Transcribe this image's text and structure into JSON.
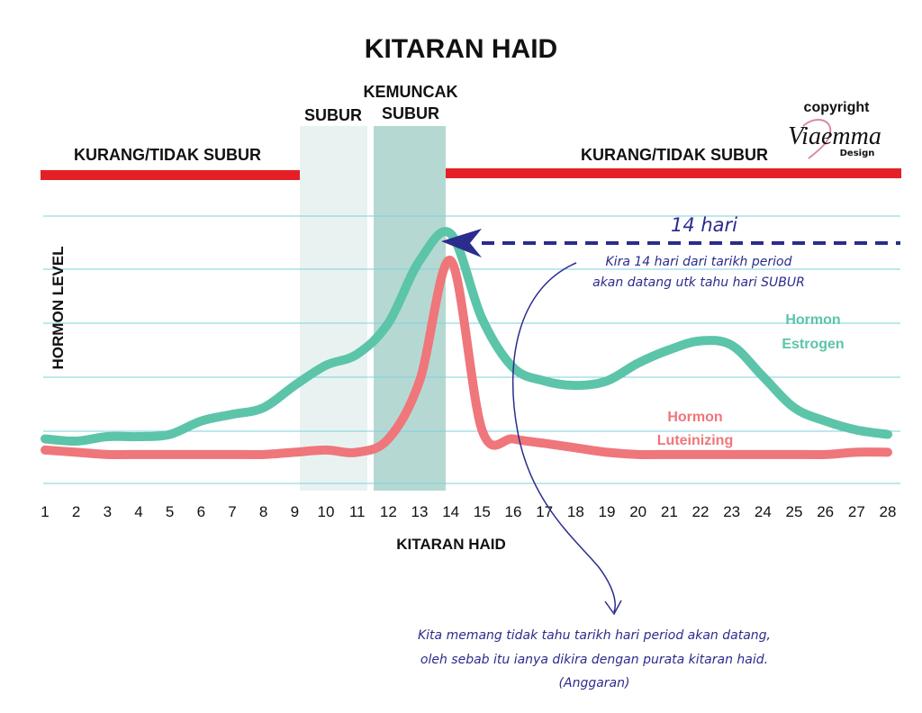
{
  "chart_data": {
    "type": "line",
    "title": "KITARAN HAID",
    "xlabel": "KITARAN HAID",
    "ylabel": "HORMON LEVEL",
    "x": [
      1,
      2,
      3,
      4,
      5,
      6,
      7,
      8,
      9,
      10,
      11,
      12,
      13,
      14,
      15,
      16,
      17,
      18,
      19,
      20,
      21,
      22,
      23,
      24,
      25,
      26,
      27,
      28
    ],
    "xlim": [
      1,
      28
    ],
    "ylim": [
      0,
      6
    ],
    "grid": true,
    "series": [
      {
        "name": "Hormon Estrogen",
        "color": "#5cc4a9",
        "values": [
          1.0,
          0.95,
          1.05,
          1.05,
          1.1,
          1.4,
          1.55,
          1.7,
          2.2,
          2.65,
          2.9,
          3.6,
          5.0,
          5.6,
          3.7,
          2.6,
          2.3,
          2.2,
          2.3,
          2.7,
          3.0,
          3.2,
          3.1,
          2.4,
          1.7,
          1.4,
          1.2,
          1.1
        ]
      },
      {
        "name": "Hormon Luteinizing",
        "color": "#ef767a",
        "values": [
          0.75,
          0.7,
          0.65,
          0.65,
          0.65,
          0.65,
          0.65,
          0.65,
          0.7,
          0.75,
          0.7,
          1.0,
          2.3,
          5.0,
          1.2,
          1.0,
          0.9,
          0.8,
          0.7,
          0.65,
          0.65,
          0.65,
          0.65,
          0.65,
          0.65,
          0.65,
          0.7,
          0.7
        ]
      }
    ],
    "zones": [
      {
        "label": "KURANG/TIDAK SUBUR",
        "from": 1,
        "to": 10.5,
        "color": "#e42026"
      },
      {
        "label": "SUBUR",
        "from": 10.5,
        "to": 12.5,
        "color": "#e8f3f1"
      },
      {
        "label": "KEMUNCAK SUBUR",
        "from": 12.5,
        "to": 14.6,
        "color": "#b5d9d2"
      },
      {
        "label": "KURANG/TIDAK SUBUR",
        "from": 14.6,
        "to": 28.5,
        "color": "#e42026"
      }
    ],
    "annotations": {
      "days_label": "14 hari",
      "arrow_note_line1": "Kira 14 hari dari tarikh period",
      "arrow_note_line2": "akan datang utk tahu hari SUBUR",
      "bottom_note_line1": "Kita memang tidak tahu tarikh hari period akan datang,",
      "bottom_note_line2": "oleh sebab itu ianya dikira dengan purata kitaran haid.",
      "bottom_note_line3": "(Anggaran)"
    },
    "series_labels": {
      "estrogen_line1": "Hormon",
      "estrogen_line2": "Estrogen",
      "lh_line1": "Hormon",
      "lh_line2": "Luteinizing"
    }
  },
  "brand": {
    "copyright": "copyright",
    "name": "Viaemma",
    "sub": "Design"
  },
  "colors": {
    "gridline": "#7dcfe0",
    "annotation": "#2b2c8c",
    "accent_red": "#e42026"
  }
}
